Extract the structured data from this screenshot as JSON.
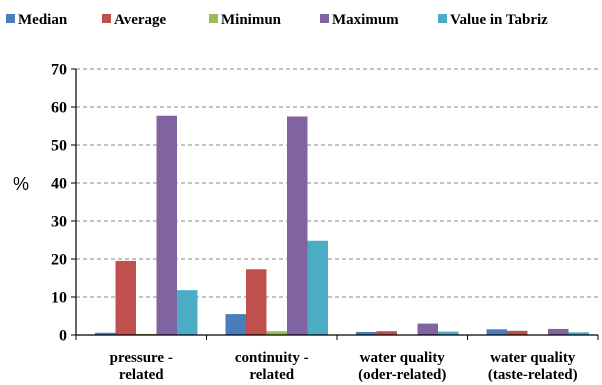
{
  "chart_data": {
    "type": "bar",
    "title": "",
    "xlabel": "",
    "ylabel": "%",
    "ylim": [
      0,
      70
    ],
    "yticks": [
      0,
      10,
      20,
      30,
      40,
      50,
      60,
      70
    ],
    "grid": "horizontal-dashed",
    "legend_position": "top",
    "categories": [
      [
        "pressure -",
        "related"
      ],
      [
        "continuity -",
        "related"
      ],
      [
        "water quality",
        "(oder-related)"
      ],
      [
        "water quality",
        "(taste-related)"
      ]
    ],
    "series": [
      {
        "name": "Median",
        "color": "#4a7ebb",
        "values": [
          0.6,
          5.5,
          0.8,
          1.5
        ]
      },
      {
        "name": "Average",
        "color": "#c0504d",
        "values": [
          19.5,
          17.3,
          1.0,
          1.1
        ]
      },
      {
        "name": "Minimun",
        "color": "#9bbb59",
        "values": [
          0.3,
          1.0,
          0.0,
          0.0
        ]
      },
      {
        "name": "Maximum",
        "color": "#8064a2",
        "values": [
          57.7,
          57.5,
          3.0,
          1.6
        ]
      },
      {
        "name": "Value in Tabriz",
        "color": "#4bacc6",
        "values": [
          11.8,
          24.8,
          0.9,
          0.7
        ]
      }
    ]
  }
}
